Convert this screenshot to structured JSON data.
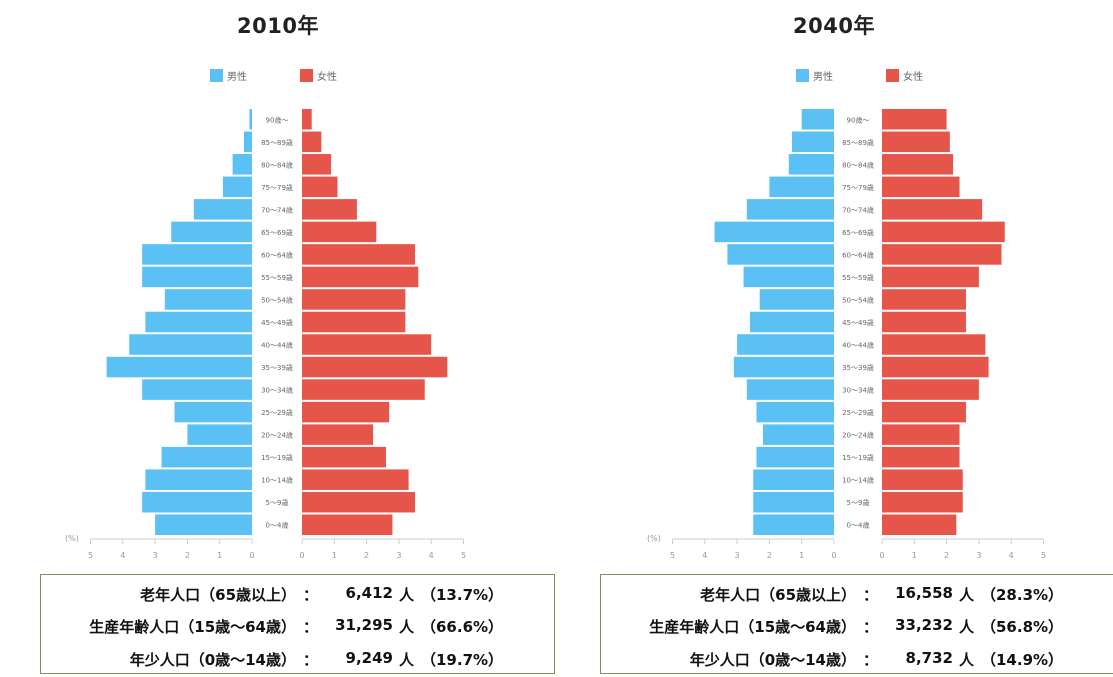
{
  "charts": [
    {
      "title": "2010年",
      "summary": [
        {
          "label": "老年人口（65歳以上）",
          "colon": "：",
          "value": "6,412",
          "unit": "人",
          "pct": "（13.7%）"
        },
        {
          "label": "生産年齢人口（15歳～64歳）",
          "colon": "：",
          "value": "31,295",
          "unit": "人",
          "pct": "（66.6%）"
        },
        {
          "label": "年少人口（0歳～14歳）",
          "colon": "：",
          "value": "9,249",
          "unit": "人",
          "pct": "（19.7%）"
        }
      ]
    },
    {
      "title": "2040年",
      "summary": [
        {
          "label": "老年人口（65歳以上）",
          "colon": "：",
          "value": "16,558",
          "unit": "人",
          "pct": "（28.3%）"
        },
        {
          "label": "生産年齢人口（15歳～64歳）",
          "colon": "：",
          "value": "33,232",
          "unit": "人",
          "pct": "（56.8%）"
        },
        {
          "label": "年少人口（0歳～14歳）",
          "colon": "：",
          "value": "8,732",
          "unit": "人",
          "pct": "（14.9%）"
        }
      ]
    }
  ],
  "colors": {
    "male": "#5bc0f4",
    "female": "#e5554a"
  },
  "chart_data": [
    {
      "type": "bar",
      "orientation": "horizontal",
      "title": "2010年",
      "categories": [
        "0～4歳",
        "5～9歳",
        "10～14歳",
        "15～19歳",
        "20～24歳",
        "25～29歳",
        "30～34歳",
        "35～39歳",
        "40～44歳",
        "45～49歳",
        "50～54歳",
        "55～59歳",
        "60～64歳",
        "65～69歳",
        "70～74歳",
        "75～79歳",
        "80～84歳",
        "85～89歳",
        "90歳～"
      ],
      "series": [
        {
          "name": "男性",
          "values": [
            3.0,
            3.4,
            3.3,
            2.8,
            2.0,
            2.4,
            3.4,
            4.5,
            3.8,
            3.3,
            2.7,
            3.4,
            3.4,
            2.5,
            1.8,
            0.9,
            0.6,
            0.25,
            0.08
          ]
        },
        {
          "name": "女性",
          "values": [
            2.8,
            3.5,
            3.3,
            2.6,
            2.2,
            2.7,
            3.8,
            4.5,
            4.0,
            3.2,
            3.2,
            3.6,
            3.5,
            2.3,
            1.7,
            1.1,
            0.9,
            0.6,
            0.3
          ]
        }
      ],
      "xlabel": "(%)",
      "xlim": [
        0,
        5
      ],
      "xticks": [
        "5",
        "4",
        "3",
        "2",
        "1",
        "0",
        "0",
        "1",
        "2",
        "3",
        "4",
        "5"
      ],
      "legend": "top"
    },
    {
      "type": "bar",
      "orientation": "horizontal",
      "title": "2040年",
      "categories": [
        "0～4歳",
        "5～9歳",
        "10～14歳",
        "15～19歳",
        "20～24歳",
        "25～29歳",
        "30～34歳",
        "35～39歳",
        "40～44歳",
        "45～49歳",
        "50～54歳",
        "55～59歳",
        "60～64歳",
        "65～69歳",
        "70～74歳",
        "75～79歳",
        "80～84歳",
        "85～89歳",
        "90歳～"
      ],
      "series": [
        {
          "name": "男性",
          "values": [
            2.5,
            2.5,
            2.5,
            2.4,
            2.2,
            2.4,
            2.7,
            3.1,
            3.0,
            2.6,
            2.3,
            2.8,
            3.3,
            3.7,
            2.7,
            2.0,
            1.4,
            1.3,
            1.0
          ]
        },
        {
          "name": "女性",
          "values": [
            2.3,
            2.5,
            2.5,
            2.4,
            2.4,
            2.6,
            3.0,
            3.3,
            3.2,
            2.6,
            2.6,
            3.0,
            3.7,
            3.8,
            3.1,
            2.4,
            2.2,
            2.1,
            2.0
          ]
        }
      ],
      "xlabel": "(%)",
      "xlim": [
        0,
        5
      ],
      "xticks": [
        "5",
        "4",
        "3",
        "2",
        "1",
        "0",
        "0",
        "1",
        "2",
        "3",
        "4",
        "5"
      ],
      "legend": "top"
    }
  ]
}
